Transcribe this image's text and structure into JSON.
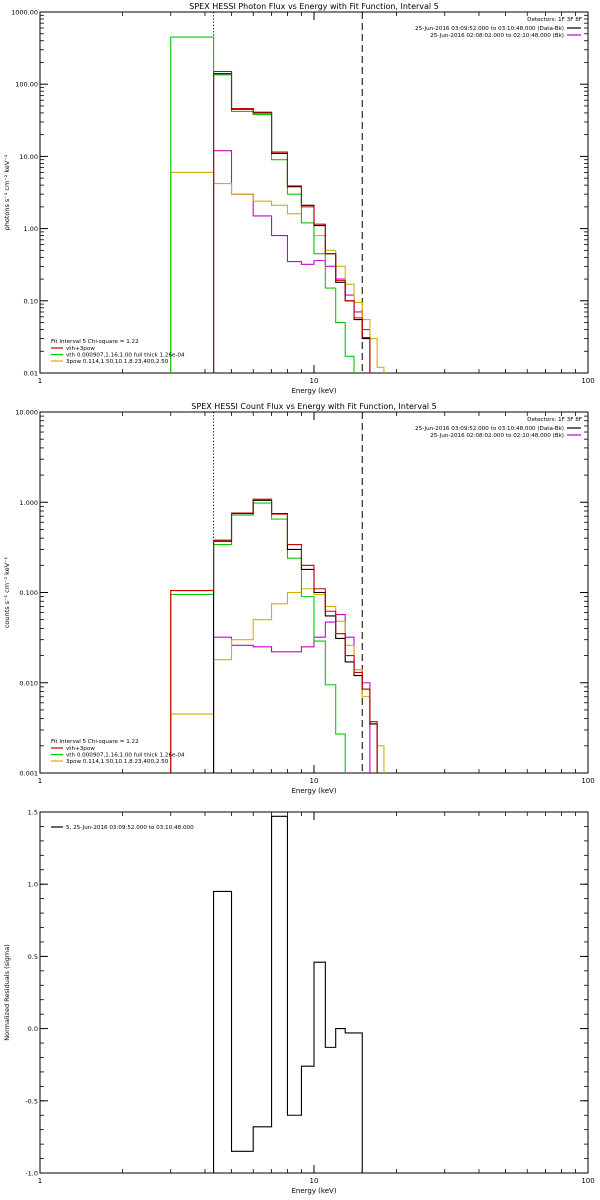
{
  "chart_data": [
    {
      "type": "line",
      "title": "SPEX HESSI Photon Flux vs Energy with Fit Function, Interval 5",
      "xlabel": "Energy (keV)",
      "ylabel": "photons s⁻¹ cm⁻² keV⁻¹",
      "xscale": "log",
      "yscale": "log",
      "xlim": [
        1,
        100
      ],
      "ylim": [
        0.01,
        1000
      ],
      "x_ticks": [
        "1",
        "10",
        "100"
      ],
      "y_ticks": [
        "0.01",
        "0.10",
        "1.00",
        "10.00",
        "100.00",
        "1000.00"
      ],
      "legend_header": "Detectors: 1F 3F 8F",
      "legend_right": [
        {
          "label": "25-Jun-2016 03:09:52.000 to 03:10:48.000 (Data-Bk)",
          "color": "#000000"
        },
        {
          "label": "25-Jun-2016 02:08:02.000 to 02:10:48.000 (Bk)",
          "color": "#cc00cc"
        }
      ],
      "fit_header": "Fit Interval 5   Chi-square = 1.22",
      "legend_left": [
        {
          "label": "vth+3pow",
          "color": "#cc0000"
        },
        {
          "label": "vth 0.000907,1.16,1.00  full thick 1.26e-04",
          "color": "#00cc00"
        },
        {
          "label": "3pow 0.114,1.50,10.1,8.23,400,2.50",
          "color": "#d4b000"
        }
      ],
      "vlines": [
        {
          "x": 4.3,
          "style": "dotted"
        },
        {
          "x": 15.0,
          "style": "dashed"
        }
      ],
      "bin_edges": [
        3.0,
        4.3,
        5.0,
        6.0,
        7.0,
        8.0,
        9.0,
        10.0,
        11.0,
        12.0,
        13.0,
        14.0,
        15.0,
        16.0,
        17.0,
        18.0
      ],
      "series": [
        {
          "key": "bk",
          "color": "#cc00cc",
          "values": [
            null,
            12,
            3,
            1.5,
            0.8,
            0.35,
            0.32,
            0.36,
            0.3,
            0.2,
            0.12,
            0.07,
            0.04,
            null,
            null
          ]
        },
        {
          "key": "comp2",
          "color": "#d4b000",
          "values": [
            6,
            4.2,
            3,
            2.4,
            2.1,
            1.6,
            1.2,
            0.8,
            0.5,
            0.3,
            0.17,
            0.095,
            0.055,
            0.03,
            0.012
          ]
        },
        {
          "key": "comp1",
          "color": "#00cc00",
          "values": [
            450,
            135,
            42,
            38,
            9,
            3,
            1.2,
            0.45,
            0.15,
            0.05,
            0.017,
            null,
            null,
            null,
            null
          ]
        },
        {
          "key": "data",
          "color": "#000000",
          "values": [
            null,
            140,
            45,
            40,
            11,
            3.8,
            2.1,
            1.1,
            0.45,
            0.18,
            0.1,
            0.055,
            0.03,
            null,
            null
          ]
        },
        {
          "key": "fit",
          "color": "#cc0000",
          "values": [
            null,
            150,
            46,
            41,
            11.5,
            3.9,
            2.0,
            1.15,
            0.45,
            0.19,
            0.1,
            0.058,
            0.031,
            null,
            null
          ]
        }
      ]
    },
    {
      "type": "line",
      "title": "SPEX HESSI Count Flux vs Energy with Fit Function, Interval 5",
      "xlabel": "Energy (keV)",
      "ylabel": "counts s⁻¹ cm⁻² keV⁻¹",
      "xscale": "log",
      "yscale": "log",
      "xlim": [
        1,
        100
      ],
      "ylim": [
        0.001,
        10
      ],
      "x_ticks": [
        "1",
        "10",
        "100"
      ],
      "y_ticks": [
        "0.001",
        "0.010",
        "0.100",
        "1.000",
        "10.000"
      ],
      "legend_header": "Detectors: 1F 3F 8F",
      "legend_right": [
        {
          "label": "25-Jun-2016 03:09:52.000 to 03:10:48.000 (Data-Bk)",
          "color": "#000000"
        },
        {
          "label": "25-Jun-2016 02:08:02.000 to 02:10:48.000 (Bk)",
          "color": "#cc00cc"
        }
      ],
      "fit_header": "Fit Interval 5   Chi-square = 1.22",
      "legend_left": [
        {
          "label": "vth+3pow",
          "color": "#cc0000"
        },
        {
          "label": "vth 0.000907,1.16,1.00  full thick 1.26e-04",
          "color": "#00cc00"
        },
        {
          "label": "3pow 0.114,1.50,10.1,8.23,400,2.50",
          "color": "#d4b000"
        }
      ],
      "vlines": [
        {
          "x": 4.3,
          "style": "dotted"
        },
        {
          "x": 15.0,
          "style": "dashed"
        }
      ],
      "bin_edges": [
        3.0,
        4.3,
        5.0,
        6.0,
        7.0,
        8.0,
        9.0,
        10.0,
        11.0,
        12.0,
        13.0,
        14.0,
        15.0,
        16.0,
        17.0,
        18.0
      ],
      "series": [
        {
          "key": "bk",
          "color": "#cc00cc",
          "values": [
            null,
            0.032,
            0.026,
            0.025,
            0.022,
            0.022,
            0.025,
            0.032,
            0.047,
            0.057,
            0.032,
            0.014,
            0.01,
            null,
            null
          ]
        },
        {
          "key": "comp2",
          "color": "#d4b000",
          "values": [
            0.0045,
            0.018,
            0.03,
            0.05,
            0.075,
            0.1,
            0.11,
            0.095,
            0.07,
            0.048,
            0.026,
            0.014,
            0.007,
            0.0035,
            0.002
          ]
        },
        {
          "key": "comp1",
          "color": "#00cc00",
          "values": [
            0.095,
            0.34,
            0.72,
            0.98,
            0.65,
            0.24,
            0.09,
            0.029,
            0.0095,
            0.0027,
            null,
            null,
            null,
            null,
            null
          ]
        },
        {
          "key": "data",
          "color": "#000000",
          "values": [
            null,
            0.37,
            0.75,
            1.05,
            0.75,
            0.3,
            0.18,
            0.1,
            0.055,
            0.031,
            0.017,
            0.012,
            0.0085,
            0.0035,
            null
          ]
        },
        {
          "key": "fit",
          "color": "#cc0000",
          "values": [
            0.105,
            0.38,
            0.76,
            1.08,
            0.74,
            0.34,
            0.2,
            0.11,
            0.062,
            0.035,
            0.02,
            0.013,
            0.0085,
            0.0037,
            null
          ]
        }
      ]
    },
    {
      "type": "line",
      "title": "",
      "xlabel": "Energy (keV)",
      "ylabel": "Normalized Residuals (sigma)",
      "xscale": "log",
      "yscale": "linear",
      "xlim": [
        1,
        100
      ],
      "ylim": [
        -1,
        1.5
      ],
      "x_ticks": [
        "1",
        "10",
        "100"
      ],
      "y_ticks": [
        "-1.0",
        "-0.5",
        "0.0",
        "0.5",
        "1.0",
        "1.5"
      ],
      "legend_left": [
        {
          "label": "5, 25-Jun-2016 03:09:52.000 to 03:10:48.000",
          "color": "#000000"
        }
      ],
      "bin_edges": [
        4.3,
        5.0,
        6.0,
        7.0,
        8.0,
        9.0,
        10.0,
        11.0,
        12.0,
        13.0,
        14.0,
        15.0
      ],
      "series": [
        {
          "key": "resid",
          "color": "#000000",
          "values": [
            0.95,
            -0.85,
            -0.68,
            1.47,
            -0.6,
            -0.26,
            0.46,
            -0.13,
            0.0,
            -0.03,
            -0.03
          ]
        }
      ]
    }
  ]
}
